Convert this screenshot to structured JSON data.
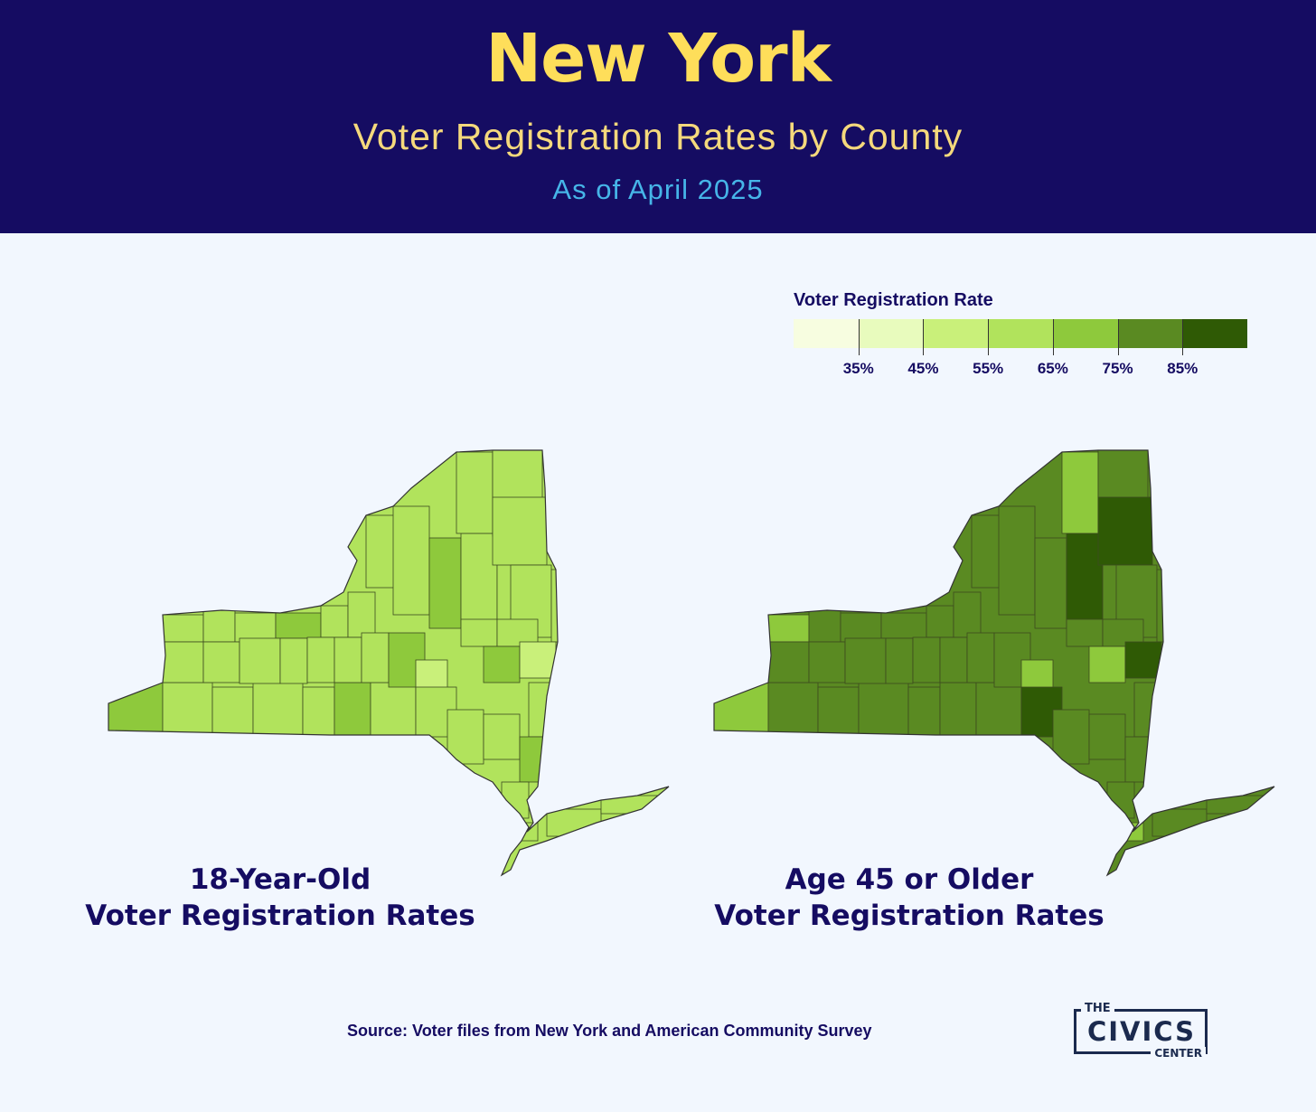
{
  "header": {
    "title": "New York",
    "subtitle": "Voter Registration Rates by County",
    "date": "As of April 2025"
  },
  "legend": {
    "title": "Voter Registration Rate",
    "tick_labels": [
      "35%",
      "45%",
      "55%",
      "65%",
      "75%",
      "85%"
    ],
    "colors": [
      "#f7fde0",
      "#e8fbbd",
      "#c9f07a",
      "#b1e35c",
      "#8ec93c",
      "#5a8a22",
      "#2f5a05"
    ]
  },
  "maps": [
    {
      "label_line1": "18-Year-Old",
      "label_line2": "Voter Registration Rates",
      "dominant_bin": 3
    },
    {
      "label_line1": "Age 45 or Older",
      "label_line2": "Voter Registration Rates",
      "dominant_bin": 5
    }
  ],
  "source": "Source: Voter files from New York and American Community Survey",
  "logo": {
    "the": "THE",
    "name": "CIVICS",
    "center": "CENTER"
  }
}
